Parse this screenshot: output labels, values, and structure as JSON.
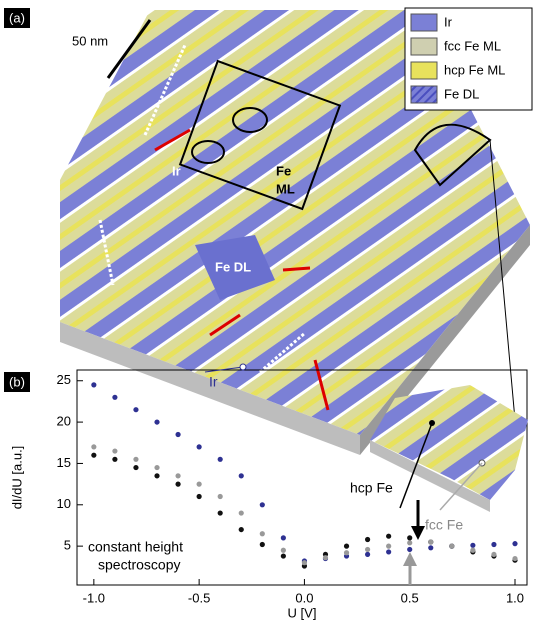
{
  "panel_a": {
    "label": "(a)",
    "scale_bar": "50 nm",
    "legend": [
      "Ir",
      "fcc  Fe ML",
      "hcp Fe ML",
      "Fe DL"
    ],
    "labels": {
      "ir": "Ir",
      "fe_ml": [
        "Fe",
        "ML"
      ],
      "fe_dl": "Fe DL"
    }
  },
  "chart_data": {
    "type": "scatter",
    "panel_label": "(b)",
    "x_label": "U [V]",
    "y_label": "dI/dU  [a.u.]",
    "annotation": [
      "constant height",
      "spectroscopy"
    ],
    "x": [
      -1.0,
      -0.9,
      -0.8,
      -0.7,
      -0.6,
      -0.5,
      -0.4,
      -0.3,
      -0.2,
      -0.1,
      0.0,
      0.1,
      0.2,
      0.3,
      0.4,
      0.5,
      0.6,
      0.7,
      0.8,
      0.9,
      1.0
    ],
    "series": [
      {
        "name": "Ir",
        "color": "#2e3192",
        "values": [
          24.5,
          23,
          21.5,
          20,
          18.5,
          17,
          15.5,
          13.5,
          10,
          6,
          3.2,
          3.5,
          3.8,
          4.0,
          4.3,
          4.6,
          4.8,
          5.0,
          5.1,
          5.2,
          5.3
        ]
      },
      {
        "name": "hcp Fe",
        "color": "#111111",
        "values": [
          16,
          15.5,
          14.5,
          13.5,
          12.5,
          11,
          9,
          7,
          5.2,
          3.8,
          2.6,
          4.0,
          5.0,
          5.8,
          6.2,
          6.0,
          5.5,
          5.0,
          4.3,
          3.8,
          3.3
        ]
      },
      {
        "name": "fcc Fe",
        "color": "#999999",
        "values": [
          17,
          16.5,
          15.5,
          14.5,
          13.5,
          12.5,
          11,
          9,
          6.5,
          4.5,
          3.0,
          3.6,
          4.2,
          4.6,
          5.0,
          5.4,
          5.5,
          5.0,
          4.5,
          4.0,
          3.5
        ]
      }
    ],
    "xlim": [
      -1.08,
      1.057
    ],
    "ylim": [
      0.3,
      26.3
    ],
    "xticks": [
      {
        "value": -1.0,
        "label": "-1.0"
      },
      -0.5,
      {
        "value": 0.0,
        "label": "0.0"
      },
      0.5,
      {
        "value": 1.0,
        "label": "1.0"
      }
    ],
    "yticks": [
      5,
      10,
      15,
      20,
      25
    ]
  }
}
